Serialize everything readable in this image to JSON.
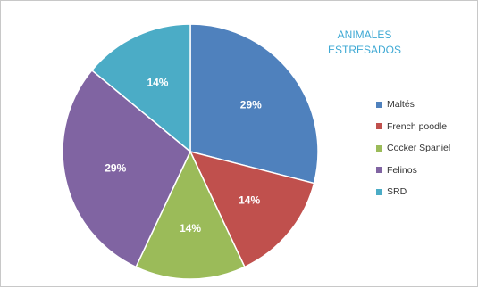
{
  "chart_data": {
    "type": "pie",
    "title_lines": [
      "ANIMALES",
      "ESTRESADOS"
    ],
    "slices": [
      {
        "label": "Maltés",
        "value": 29,
        "display": "29%",
        "color": "#4f81bd"
      },
      {
        "label": "French poodle",
        "value": 14,
        "display": "14%",
        "color": "#c0504d"
      },
      {
        "label": "Cocker Spaniel",
        "value": 14,
        "display": "14%",
        "color": "#9bbb59"
      },
      {
        "label": "Felinos",
        "value": 29,
        "display": "29%",
        "color": "#8064a2"
      },
      {
        "label": "SRD",
        "value": 14,
        "display": "14%",
        "color": "#4bacc6"
      }
    ],
    "legend_position": "right",
    "title_color": "#3fa9d4"
  }
}
